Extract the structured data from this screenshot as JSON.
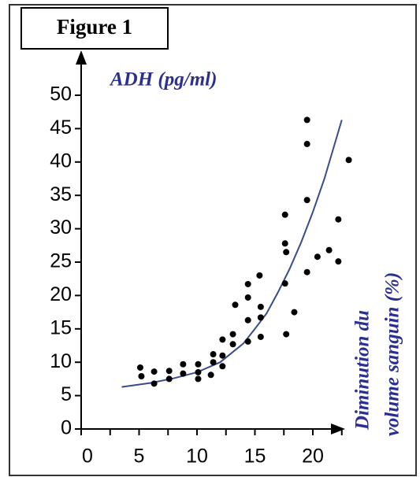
{
  "chart_data": {
    "type": "scatter",
    "title": "Figure 1",
    "ylabel": "ADH (pg/ml)",
    "xlabel": [
      "Diminution du",
      "volume sanguin (%)"
    ],
    "xlim": [
      0,
      22.6
    ],
    "ylim": [
      0,
      50
    ],
    "xticks": [
      0,
      5,
      10,
      15,
      20
    ],
    "xminorticks": [
      2.5,
      7.5,
      12.5,
      17.5,
      22.5
    ],
    "yticks": [
      0,
      5,
      10,
      15,
      20,
      25,
      30,
      35,
      40,
      45,
      50
    ],
    "point_color": "#000000",
    "curve_color": "#3b4a8a",
    "points": {
      "x": [
        5.1,
        5.2,
        6.3,
        6.3,
        7.6,
        7.6,
        8.8,
        8.8,
        10.1,
        10.1,
        10.1,
        11.2,
        11.4,
        11.4,
        12.2,
        12.2,
        12.2,
        13.1,
        13.1,
        13.3,
        14.4,
        14.4,
        14.4,
        14.4,
        15.4,
        15.5,
        15.5,
        15.5,
        17.6,
        17.6,
        17.7,
        17.6,
        17.7,
        18.4,
        19.5,
        19.5,
        19.5,
        19.5,
        20.4,
        21.4,
        22.2,
        22.2,
        23.1
      ],
      "y": [
        9.2,
        7.9,
        8.6,
        6.8,
        8.7,
        7.5,
        9.7,
        8.3,
        9.7,
        8.5,
        7.5,
        8.1,
        11.2,
        10.0,
        13.4,
        11.0,
        9.4,
        14.2,
        12.7,
        18.6,
        21.7,
        19.7,
        16.3,
        13.1,
        23.0,
        18.3,
        16.7,
        13.8,
        32.1,
        27.8,
        26.5,
        21.8,
        14.2,
        17.5,
        46.3,
        42.7,
        34.3,
        23.5,
        25.8,
        26.8,
        31.4,
        25.1,
        40.3
      ]
    },
    "fit": {
      "x": [
        3.5,
        6,
        8,
        10,
        12,
        14,
        15,
        16,
        17,
        18,
        19,
        20,
        21,
        22.5
      ],
      "y": [
        6.3,
        6.9,
        7.6,
        8.5,
        10,
        12.8,
        15,
        17.3,
        20.5,
        24,
        28,
        32.5,
        37.5,
        46.3
      ]
    }
  }
}
